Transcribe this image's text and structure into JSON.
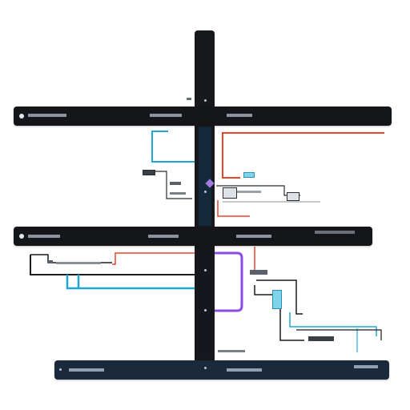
{
  "bars": {
    "top": {
      "left_label": "",
      "center_label": "",
      "right_label": ""
    },
    "mid": {
      "left_label": "",
      "center_label": "",
      "right_label": "",
      "far_right_label": ""
    },
    "bottom": {
      "left_label": "",
      "center_label": "",
      "right_label": ""
    }
  },
  "nodes": {
    "upper_cluster_label": "",
    "upper_box_label": "",
    "lower_cluster_label": "",
    "bottom_floating_label": ""
  },
  "colors": {
    "bar": "#141619",
    "bar_bottom": "#1b2a3a",
    "wire_cyan": "#1ea7d4",
    "wire_red": "#e8452d",
    "wire_purple": "#8a4fe0",
    "wire_black": "#1a1c20",
    "wire_gray": "#8a9097"
  }
}
